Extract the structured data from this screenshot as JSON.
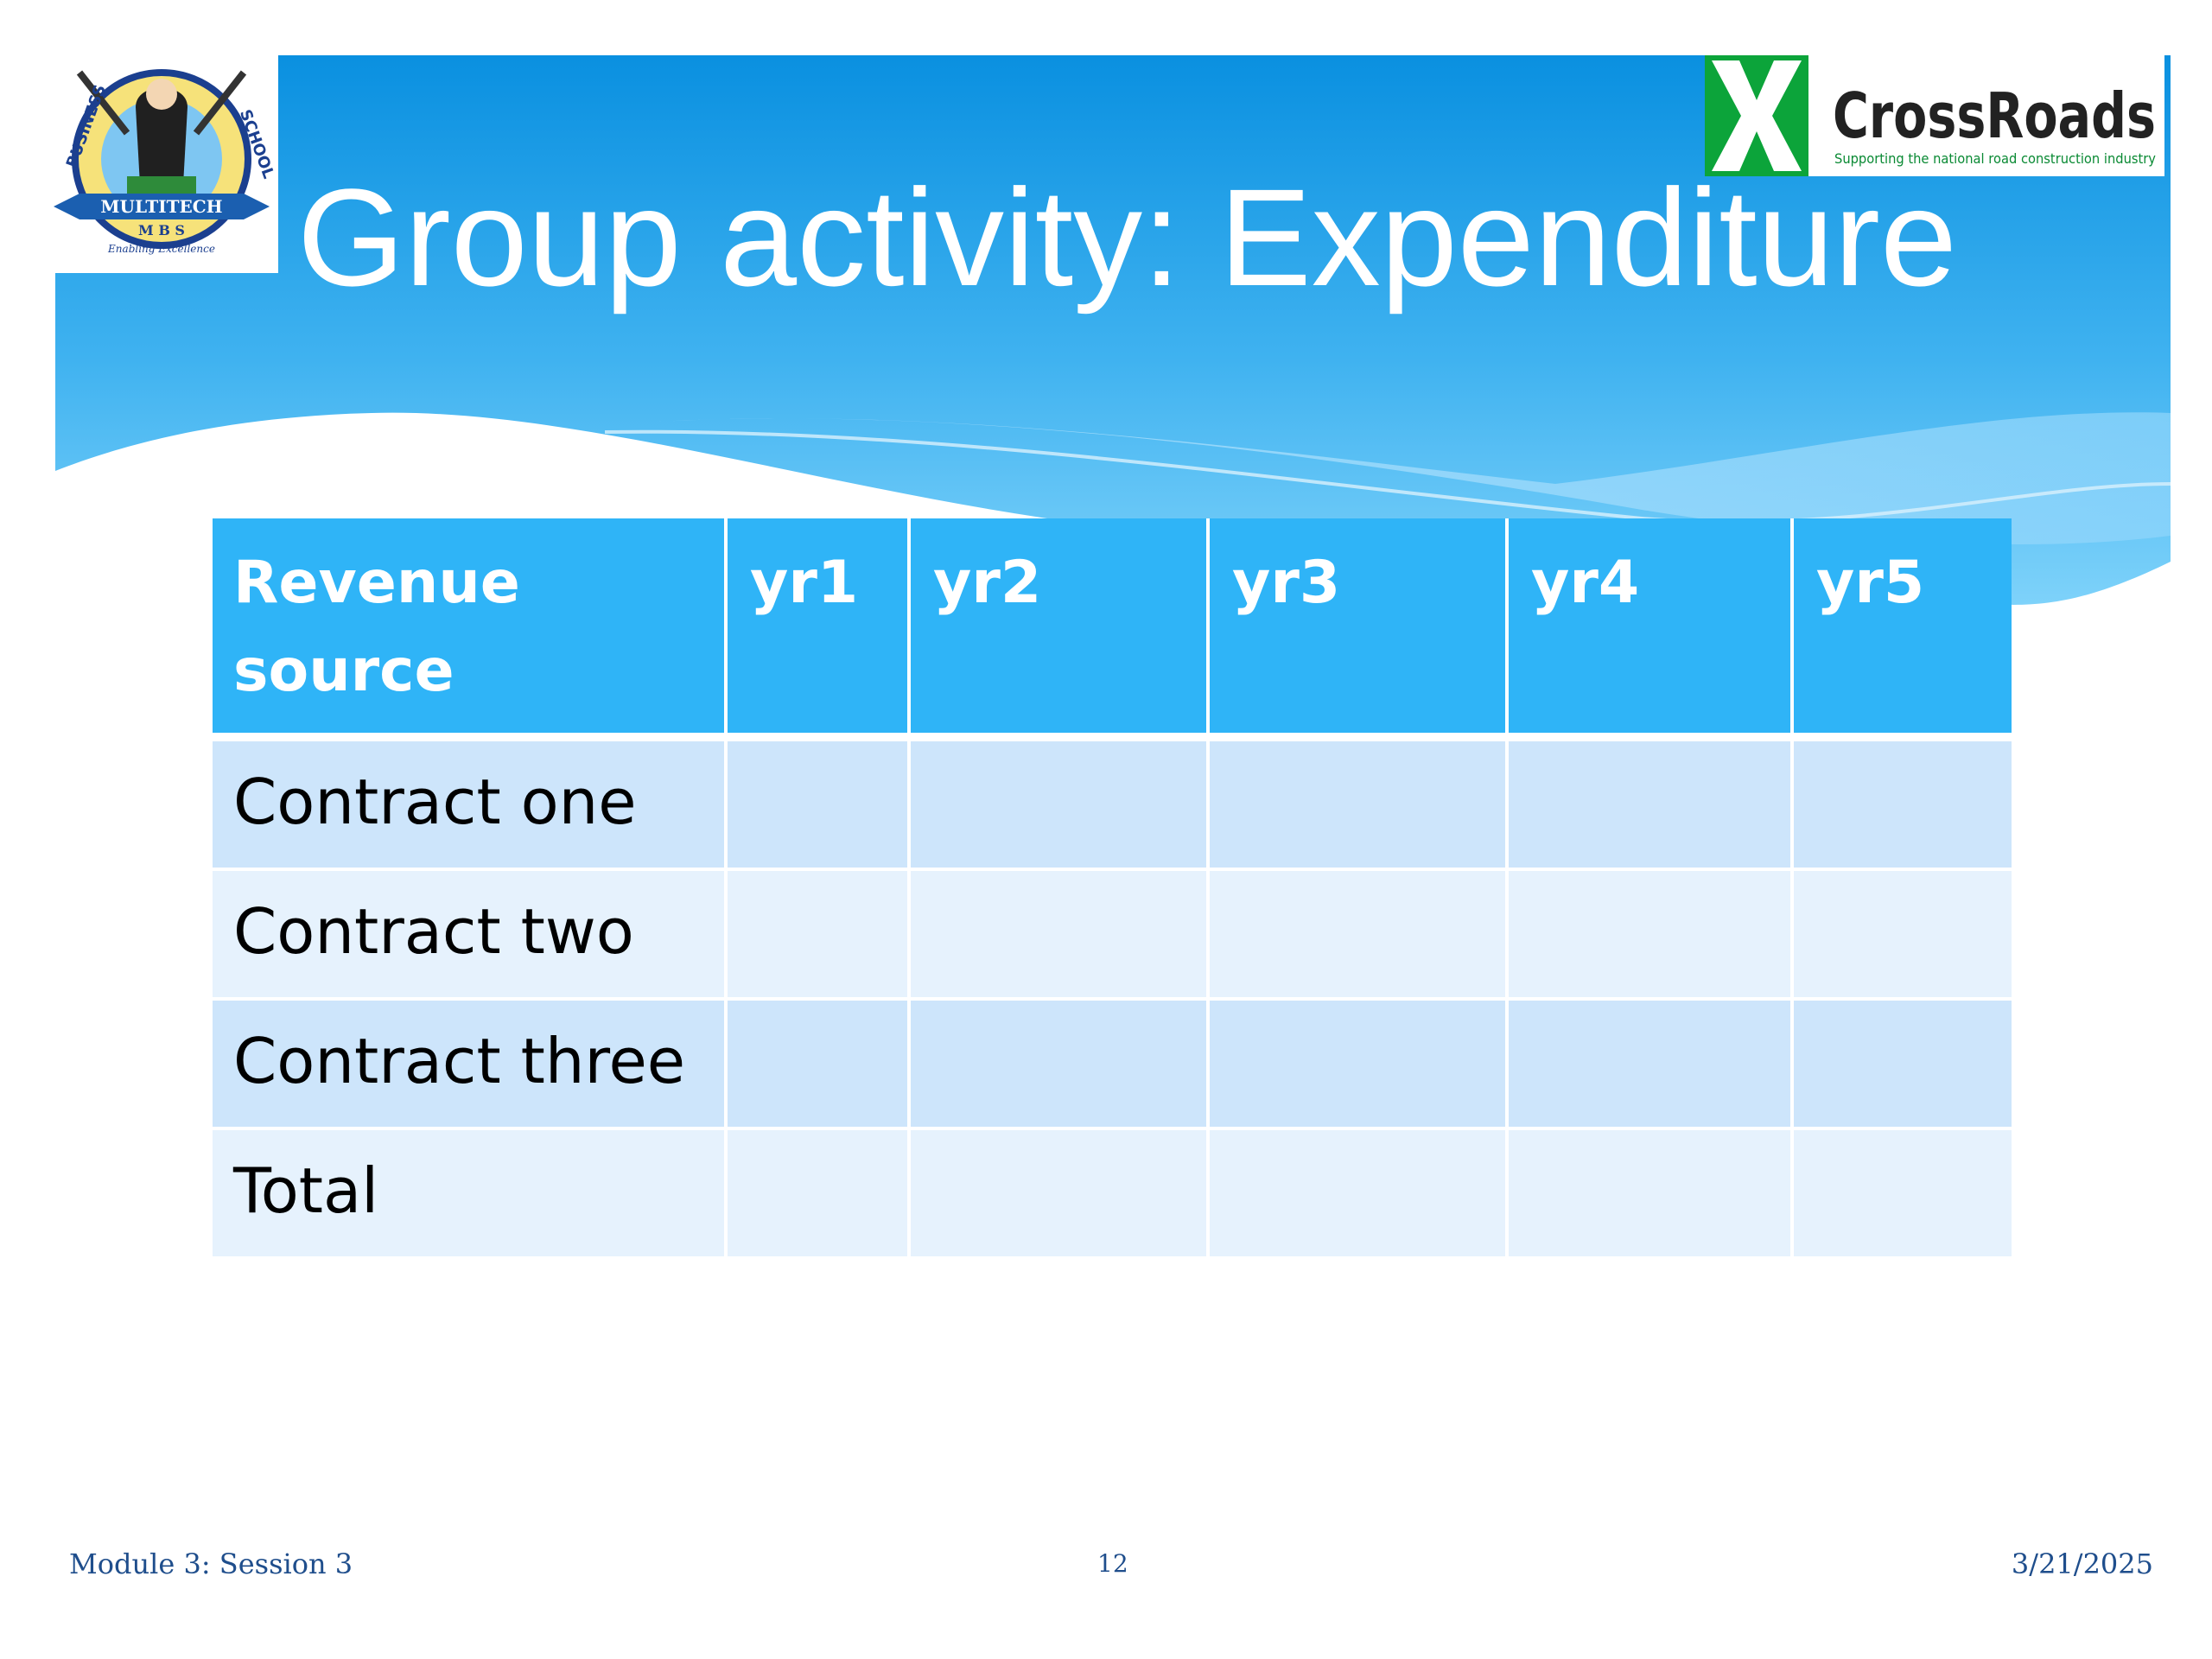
{
  "slide": {
    "title": "Group activity: Expenditure",
    "colors": {
      "banner_top": "#0a90e0",
      "banner_bottom": "#63c6f7",
      "header_fill": "#2fb4f7",
      "row_odd": "#cde5fb",
      "row_even": "#e6f2fd",
      "footer_text": "#1f4e8c"
    }
  },
  "logos": {
    "left": {
      "icon": "school-crest-logo",
      "ring_top_left": "BUSINESS",
      "ring_top_right": "SCHOOL",
      "banner_text": "MULTITECH",
      "sub_text": "M B S",
      "motto": "Enabling Excellence"
    },
    "right": {
      "icon": "crossroads-x-logo",
      "name": "CrossRoads",
      "tagline": "Supporting the national road construction industry"
    }
  },
  "table": {
    "headers": [
      "Revenue source",
      "yr1",
      "yr2",
      "yr3",
      "yr4",
      "yr5"
    ],
    "rows": [
      {
        "label": "Contract one",
        "values": [
          "",
          "",
          "",
          "",
          ""
        ]
      },
      {
        "label": "Contract two",
        "values": [
          "",
          "",
          "",
          "",
          ""
        ]
      },
      {
        "label": "Contract three",
        "values": [
          "",
          "",
          "",
          "",
          ""
        ]
      },
      {
        "label": "Total",
        "values": [
          "",
          "",
          "",
          "",
          ""
        ]
      }
    ]
  },
  "footer": {
    "left": "Module 3: Session 3",
    "center": "12",
    "right": "3/21/2025"
  }
}
